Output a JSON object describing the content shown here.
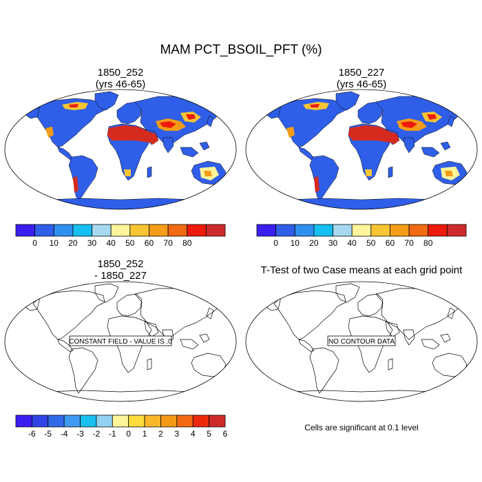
{
  "main_title": "MAM PCT_BSOIL_PFT (%)",
  "panels": [
    {
      "id": "tl",
      "title_line1": "1850_252",
      "title_line2": "(yrs 46-65)",
      "fill": true
    },
    {
      "id": "tr",
      "title_line1": "1850_227",
      "title_line2": "(yrs 46-65)",
      "fill": true
    },
    {
      "id": "bl",
      "title_line1": "1850_252",
      "title_line2": "- 1850_227",
      "fill": false,
      "box_label": "CONSTANT FIELD - VALUE IS .0"
    },
    {
      "id": "br",
      "title_line1": "T-Test of two Case means at each grid point",
      "title_line2": "",
      "fill": false,
      "box_label": "NO CONTOUR DATA"
    }
  ],
  "colorbar_main": {
    "colors": [
      "#3b1ff0",
      "#2f5ee8",
      "#2f8ff0",
      "#15bff0",
      "#a6d8f0",
      "#fff59a",
      "#f9c532",
      "#f59c18",
      "#f26a12",
      "#ee1a0c",
      "#cf2a2a"
    ],
    "labels": [
      "0",
      "10",
      "20",
      "30",
      "40",
      "50",
      "60",
      "70",
      "80"
    ]
  },
  "colorbar_diff": {
    "colors": [
      "#3b1ff0",
      "#3145e6",
      "#2f6ae8",
      "#3e9af0",
      "#19c0f0",
      "#92d2f0",
      "#fff59a",
      "#fbdc3c",
      "#f9b82a",
      "#f59a18",
      "#f26a12",
      "#ee2a0c",
      "#cf2a2a"
    ],
    "labels": [
      "-6",
      "-5",
      "-4",
      "-3",
      "-2",
      "-1",
      "0",
      "1",
      "2",
      "3",
      "4",
      "5",
      "6"
    ]
  },
  "significance_note": "Cells are significant at 0.1 level",
  "colors": {
    "ocean": "#ffffff",
    "land_base": "#2f5ee8",
    "desert": "#d52a1e",
    "coast": "#000000"
  }
}
